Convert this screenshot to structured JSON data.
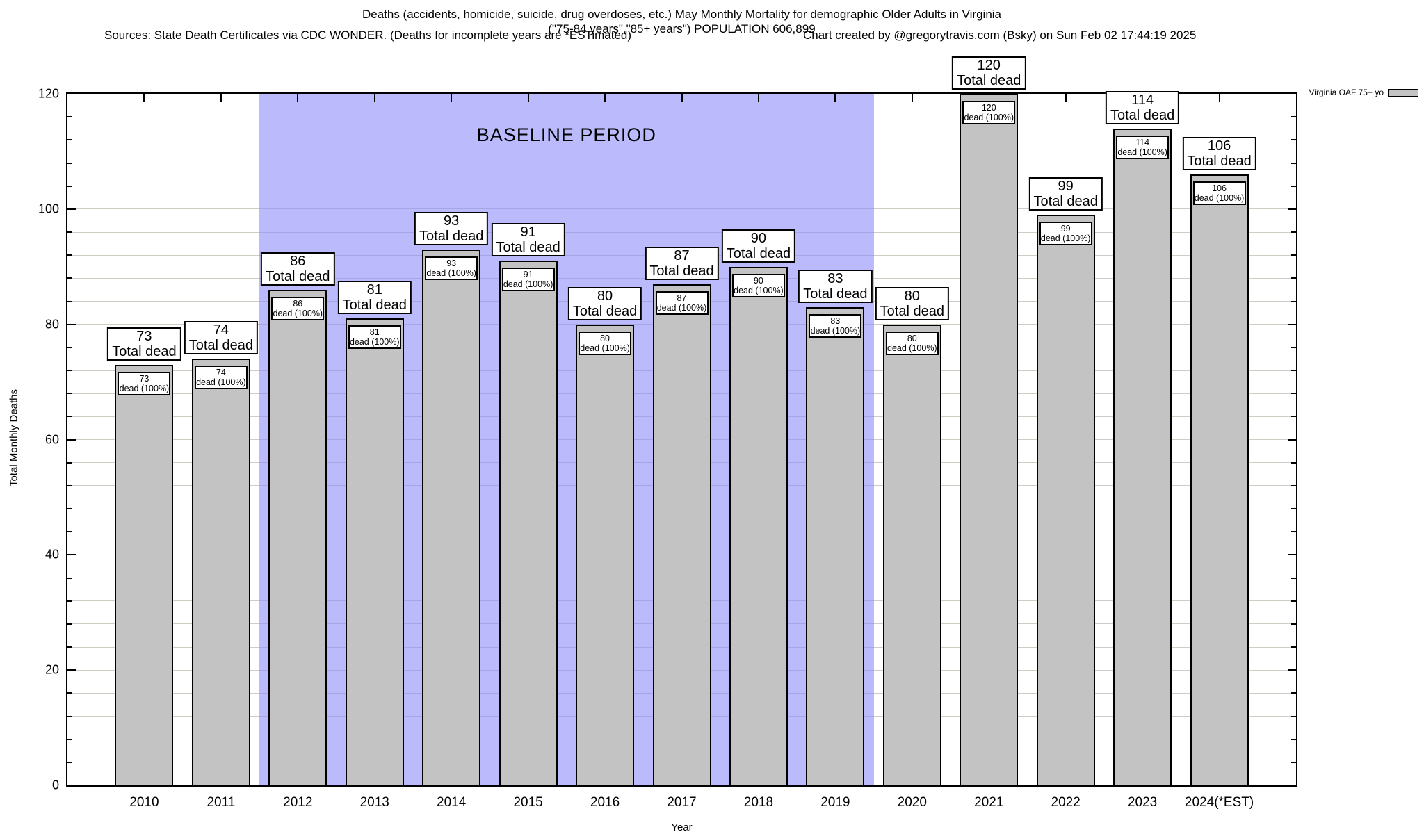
{
  "title": {
    "line1": "Deaths (accidents, homicide, suicide, drug overdoses, etc.) May Monthly Mortality for demographic Older Adults in Virginia",
    "line2": "(\"75-84 years\",\"85+ years\") POPULATION 606,899",
    "sources": "Sources: State Death Certificates via CDC WONDER. (Deaths for incomplete years are *ESTimated)",
    "credit": "Chart created by @gregorytravis.com (Bsky) on Sun Feb 02 17:44:19 2025"
  },
  "legend": {
    "label": "Virginia OAF 75+ yo"
  },
  "chart_data": {
    "type": "bar",
    "title": "Deaths (accidents, homicide, suicide, drug overdoses, etc.) May Monthly Mortality for demographic Older Adults in Virginia",
    "subtitle": "(\"75-84 years\",\"85+ years\") POPULATION 606,899",
    "categories": [
      "2010",
      "2011",
      "2012",
      "2013",
      "2014",
      "2015",
      "2016",
      "2017",
      "2018",
      "2019",
      "2020",
      "2021",
      "2022",
      "2023",
      "2024(*EST)"
    ],
    "series": [
      {
        "name": "Virginia OAF 75+ yo",
        "values": [
          73,
          74,
          86,
          81,
          93,
          91,
          80,
          87,
          90,
          83,
          80,
          120,
          99,
          114,
          106
        ]
      }
    ],
    "bar_total_label": "Total dead",
    "bar_inner_label": "dead (100%)",
    "xlabel": "Year",
    "ylabel": "Total Monthly Deaths",
    "ylim": [
      0,
      120
    ],
    "ytick_step": 20,
    "minor_grid_step": 4,
    "grid": true,
    "legend_position": "top-right-outside",
    "baseline_period": {
      "label": "BASELINE PERIOD",
      "from_category": "2012",
      "to_category": "2019"
    }
  },
  "colors": {
    "bar_fill": "#c3c3c3",
    "baseline_region_overlay": "rgba(140,140,250,0.6)",
    "baseline_region_approx": "#bbbbf8",
    "grid_line": "#cdcdc3",
    "axis": "#000000",
    "label_box_bg": "#ffffff",
    "background": "#ffffff"
  }
}
